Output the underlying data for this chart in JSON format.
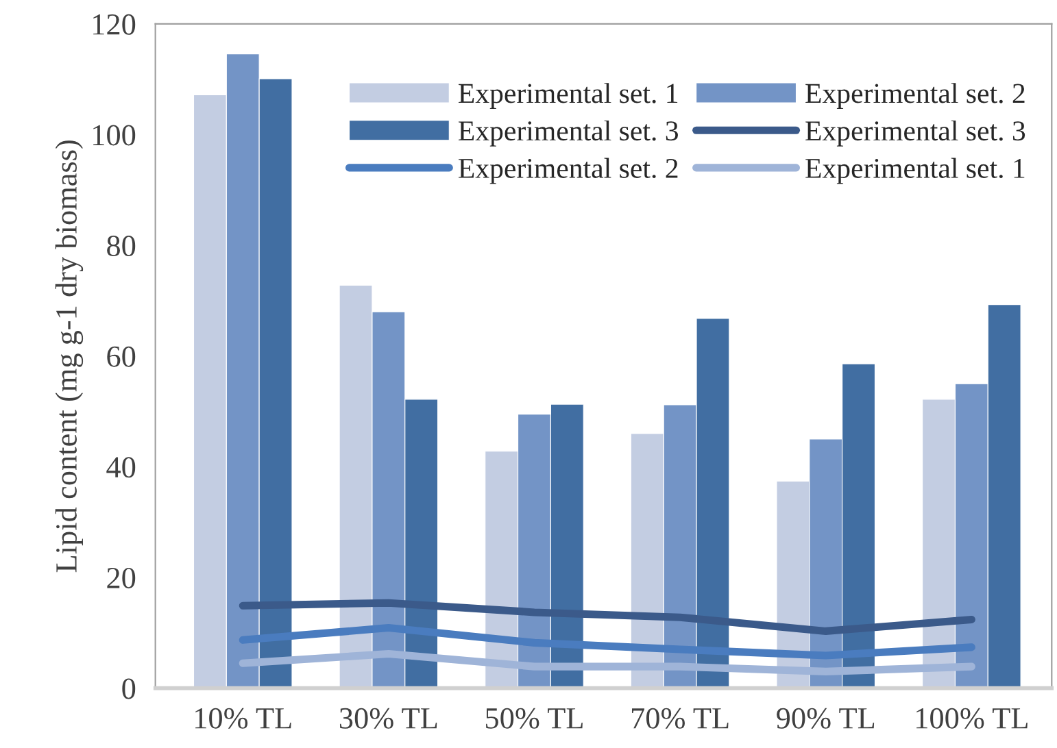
{
  "chart_data": {
    "type": "bar",
    "ylabel": "Lipid content (mg g-1 dry biomass)",
    "categories": [
      "10% TL",
      "30% TL",
      "50% TL",
      "70% TL",
      "90% TL",
      "100% TL"
    ],
    "series": [
      {
        "name": "Experimental set. 1",
        "color": "#c3cde2",
        "values": [
          107.2,
          72.8,
          42.8,
          46.0,
          37.4,
          52.2
        ]
      },
      {
        "name": "Experimental set. 2",
        "color": "#7394c6",
        "values": [
          114.6,
          68.0,
          49.5,
          51.2,
          45.0,
          55.0
        ]
      },
      {
        "name": "Experimental set. 3",
        "color": "#416ea2",
        "values": [
          110.1,
          52.2,
          51.3,
          66.8,
          58.6,
          69.3
        ]
      },
      {
        "name": "Experimental set. 3",
        "type": "line",
        "color": "#3b5a8a",
        "values": [
          14.9,
          15.4,
          13.7,
          12.8,
          10.3,
          12.4
        ]
      },
      {
        "name": "Experimental set. 2",
        "type": "line",
        "color": "#4a7cbf",
        "values": [
          8.7,
          10.9,
          8.2,
          7.0,
          5.9,
          7.4
        ]
      },
      {
        "name": "Experimental set. 1",
        "type": "line",
        "color": "#9fb4d8",
        "values": [
          4.5,
          6.2,
          3.9,
          3.9,
          3.0,
          3.9
        ]
      }
    ],
    "ylim": [
      0,
      120
    ],
    "yticks": [
      0,
      20,
      40,
      60,
      80,
      100,
      120
    ],
    "grid": false,
    "legend": "top right",
    "marker": "none",
    "line_style": "solid"
  }
}
